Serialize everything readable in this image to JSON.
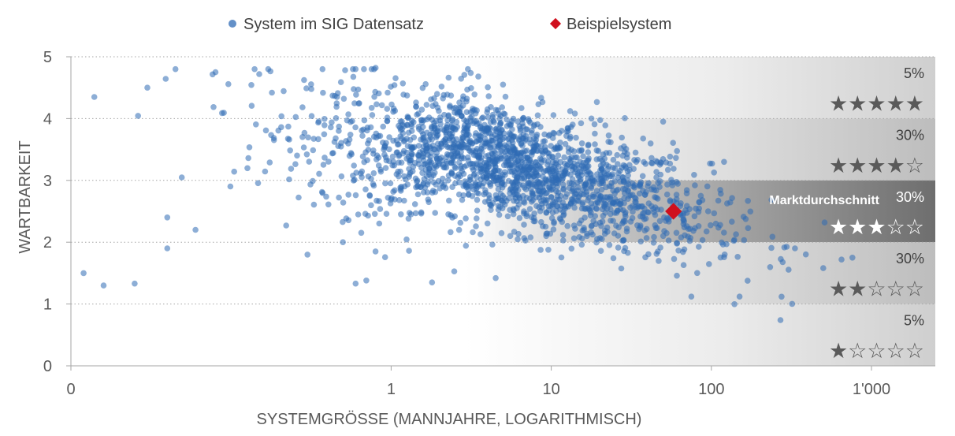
{
  "chart_data": {
    "type": "scatter",
    "xscale": "log",
    "xlim": [
      0.01,
      1000
    ],
    "ylim": [
      0,
      5
    ],
    "xlabel": "SYSTEMGRÖSSE (MANNJAHRE, LOGARITHMISCH)",
    "ylabel": "WARTBARKEIT",
    "x_ticks": [
      {
        "value": 0.01,
        "label": "0"
      },
      {
        "value": 1,
        "label": "1"
      },
      {
        "value": 10,
        "label": "10"
      },
      {
        "value": 100,
        "label": "100"
      },
      {
        "value": 1000,
        "label": "1'000"
      }
    ],
    "y_ticks": [
      {
        "value": 0,
        "label": "0"
      },
      {
        "value": 1,
        "label": "1"
      },
      {
        "value": 2,
        "label": "2"
      },
      {
        "value": 3,
        "label": "3"
      },
      {
        "value": 4,
        "label": "4"
      },
      {
        "value": 5,
        "label": "5"
      }
    ],
    "grid": "horizontal dotted",
    "legend": {
      "placement": "top",
      "entries": [
        {
          "name": "System im SIG Datensatz",
          "marker": "circle",
          "color": "#2f6bb5"
        },
        {
          "name": "Beispielsystem",
          "marker": "diamond",
          "color": "#d0101e"
        }
      ]
    },
    "series": [
      {
        "name": "System im SIG Datensatz",
        "color": "#2f6bb5",
        "approx_count": 2000,
        "trend": "maintainability decreases with system size",
        "trend_points": [
          {
            "x": 0.1,
            "y": 3.95
          },
          {
            "x": 1,
            "y": 3.5
          },
          {
            "x": 3,
            "y": 3.45
          },
          {
            "x": 10,
            "y": 3.05
          },
          {
            "x": 30,
            "y": 2.75
          },
          {
            "x": 100,
            "y": 2.3
          },
          {
            "x": 600,
            "y": 1.9
          }
        ],
        "points": [
          {
            "x": 0.012,
            "y": 1.5
          },
          {
            "x": 0.016,
            "y": 1.3
          },
          {
            "x": 0.014,
            "y": 4.35
          },
          {
            "x": 0.03,
            "y": 4.5
          },
          {
            "x": 0.08,
            "y": 4.75
          },
          {
            "x": 0.15,
            "y": 4.72
          },
          {
            "x": 0.18,
            "y": 4.42
          },
          {
            "x": 0.6,
            "y": 4.8
          },
          {
            "x": 0.8,
            "y": 4.82
          },
          {
            "x": 3.5,
            "y": 4.68
          },
          {
            "x": 5,
            "y": 4.55
          },
          {
            "x": 0.025,
            "y": 1.33
          },
          {
            "x": 0.04,
            "y": 1.9
          },
          {
            "x": 0.04,
            "y": 2.4
          },
          {
            "x": 0.06,
            "y": 2.2
          },
          {
            "x": 0.3,
            "y": 1.8
          },
          {
            "x": 0.5,
            "y": 2.0
          },
          {
            "x": 0.6,
            "y": 1.33
          },
          {
            "x": 0.7,
            "y": 1.38
          },
          {
            "x": 1.8,
            "y": 1.35
          },
          {
            "x": 4.5,
            "y": 1.42
          },
          {
            "x": 270,
            "y": 0.74
          },
          {
            "x": 150,
            "y": 1.12
          },
          {
            "x": 75,
            "y": 1.12
          },
          {
            "x": 500,
            "y": 1.58
          },
          {
            "x": 650,
            "y": 1.72
          },
          {
            "x": 760,
            "y": 1.75
          },
          {
            "x": 120,
            "y": 3.3
          },
          {
            "x": 50,
            "y": 3.95
          }
        ]
      },
      {
        "name": "Beispielsystem",
        "color": "#d0101e",
        "marker": "diamond",
        "points": [
          {
            "x": 58,
            "y": 2.5
          }
        ]
      }
    ],
    "rating_bands": [
      {
        "y_from": 4,
        "y_to": 5,
        "percent": "5%",
        "stars": "★★★★★",
        "highlight": false
      },
      {
        "y_from": 3,
        "y_to": 4,
        "percent": "30%",
        "stars": "★★★★☆",
        "highlight": false
      },
      {
        "y_from": 2,
        "y_to": 3,
        "percent": "30%",
        "stars": "★★★☆☆",
        "highlight": true,
        "label": "Marktdurchschnitt"
      },
      {
        "y_from": 1,
        "y_to": 2,
        "percent": "30%",
        "stars": "★★☆☆☆",
        "highlight": false
      },
      {
        "y_from": 0,
        "y_to": 1,
        "percent": "5%",
        "stars": "★☆☆☆☆",
        "highlight": false
      }
    ],
    "colors": {
      "scatter": "#2f6bb5",
      "example": "#d0101e",
      "band_highlight": "#7a7a7a",
      "grid": "#a6a6a6",
      "axis": "#a6a6a6"
    }
  }
}
